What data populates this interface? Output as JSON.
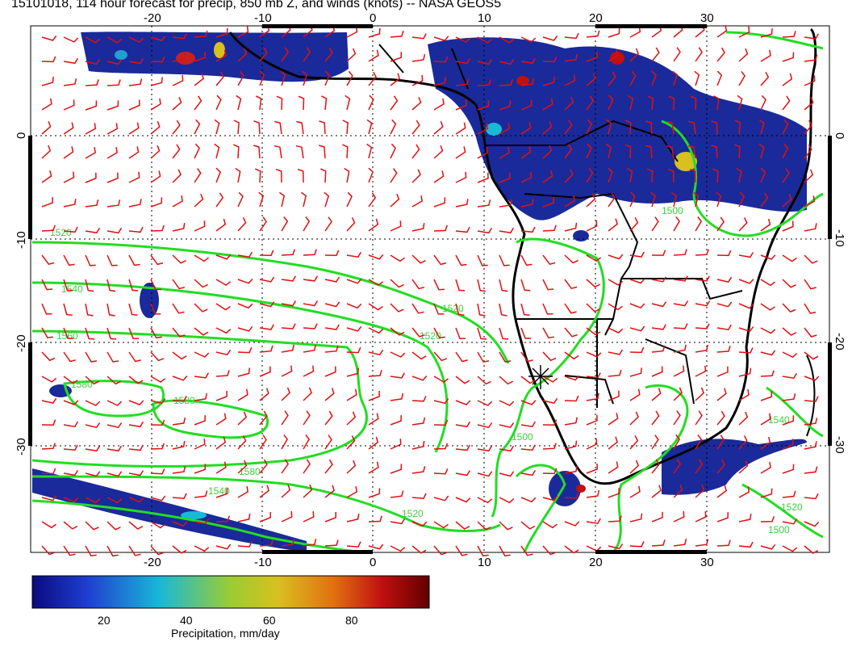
{
  "title": "15101018, 114 hour forecast for precip, 850 mb Z, and winds (knots) -- NASA GEOS5",
  "axes": {
    "lon_ticks": [
      "-20",
      "-10",
      "0",
      "10",
      "20",
      "30"
    ],
    "lat_ticks": [
      "0",
      "-10",
      "-20",
      "-30"
    ]
  },
  "contour_labels": [
    "1520",
    "1540",
    "1560",
    "1580",
    "1500",
    "1520",
    "1540",
    "1560",
    "1500",
    "1520",
    "1540",
    "1520",
    "1500"
  ],
  "colorbar": {
    "label": "Precipitation, mm/day",
    "ticks": [
      "20",
      "40",
      "60",
      "80"
    ],
    "colors": [
      "#0a0a80",
      "#1f3fd0",
      "#18b8d8",
      "#9acd32",
      "#d8c020",
      "#e07010",
      "#c01010",
      "#600000"
    ]
  },
  "colors": {
    "land_border": "#000000",
    "contour": "#22dd22",
    "wind": "#e01010"
  }
}
